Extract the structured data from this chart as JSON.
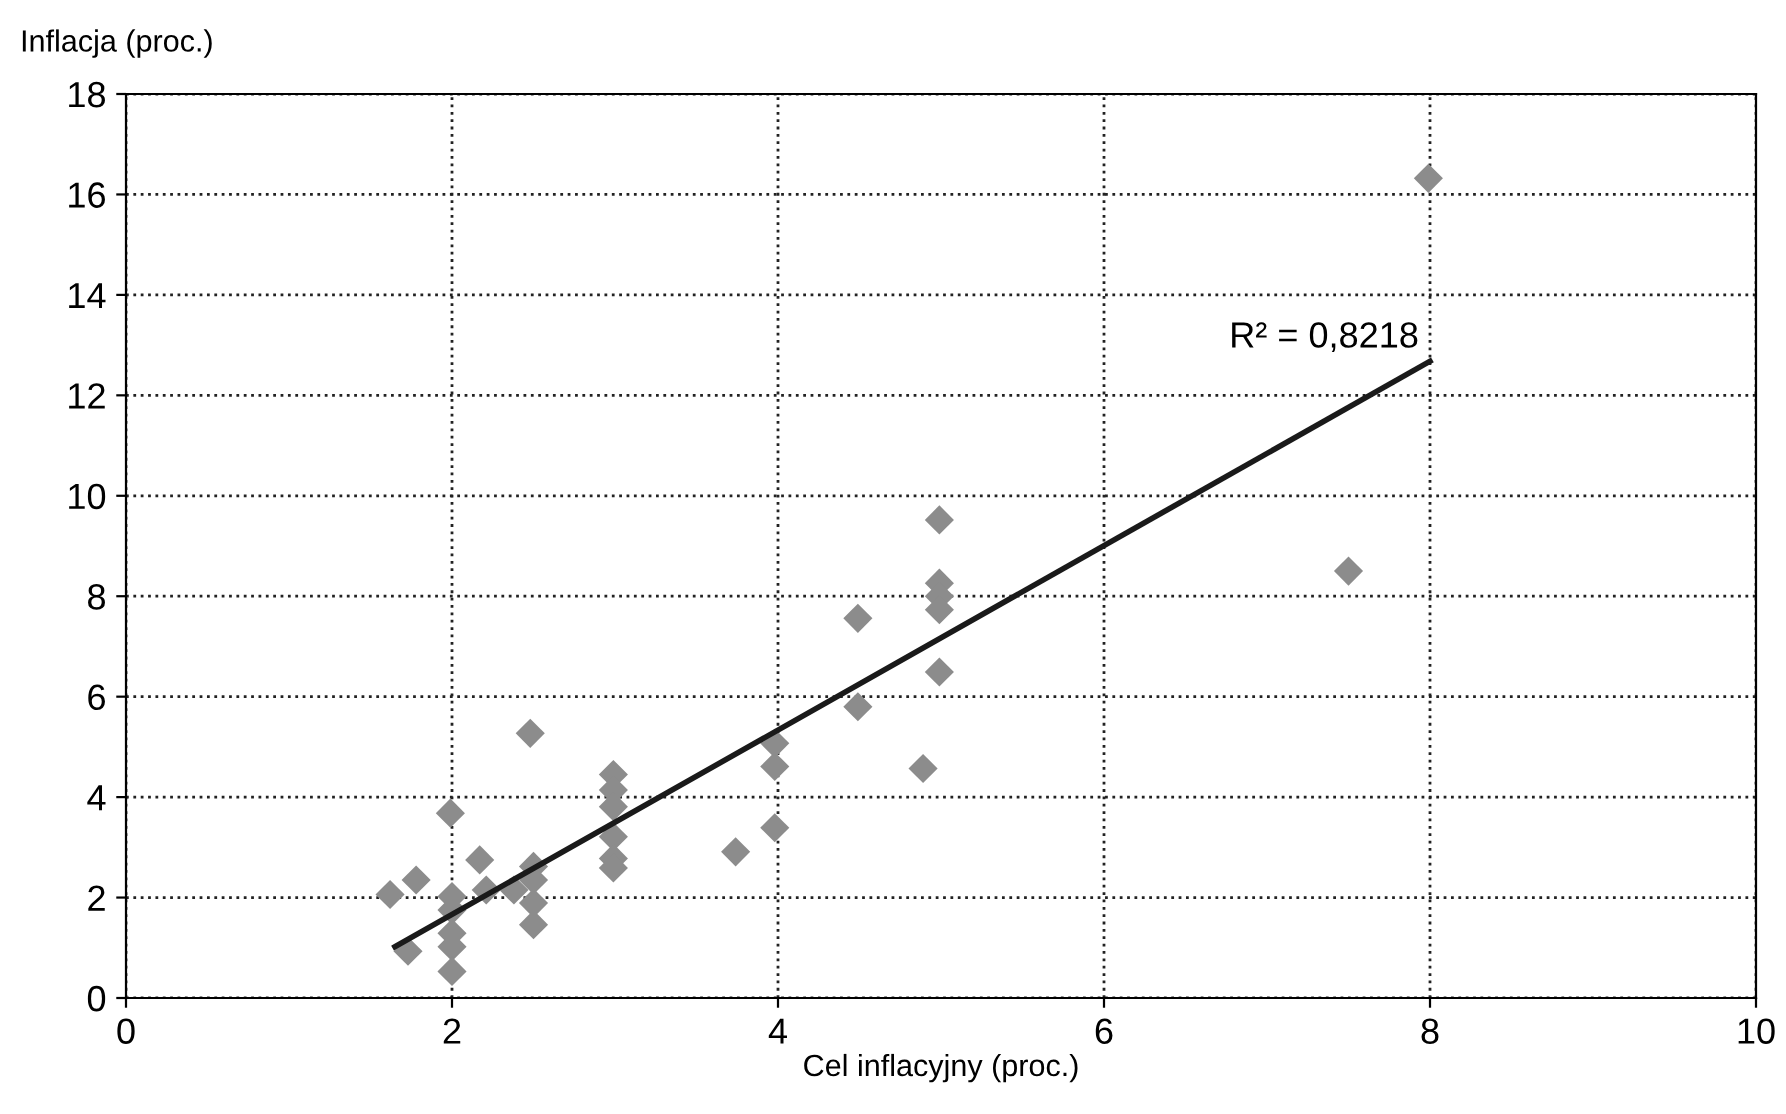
{
  "chart_data": {
    "type": "scatter",
    "xlabel": "Cel inflacyjny (proc.)",
    "ylabel": "Inflacja (proc.)",
    "xlim": [
      0,
      10
    ],
    "ylim": [
      0,
      18
    ],
    "xticks": [
      0,
      2,
      4,
      6,
      8,
      10
    ],
    "yticks": [
      0,
      2,
      4,
      6,
      8,
      10,
      12,
      14,
      16,
      18
    ],
    "grid": true,
    "legend": false,
    "marker": "diamond",
    "annotations": [
      "R² = 0,8218"
    ],
    "series": [
      {
        "color": "#8c8c8c",
        "x": [
          1.62,
          1.78,
          1.73,
          1.99,
          2.0,
          2.0,
          2.0,
          2.0,
          2.0,
          2.17,
          2.21,
          2.38,
          2.48,
          2.5,
          2.5,
          2.5,
          2.5,
          2.99,
          2.99,
          2.99,
          2.99,
          2.99,
          2.99,
          3.74,
          3.98,
          3.98,
          3.98,
          4.49,
          4.49,
          4.99,
          4.99,
          4.99,
          4.99,
          4.99,
          4.89,
          7.5,
          7.99
        ],
        "values": [
          2.06,
          2.35,
          0.93,
          3.68,
          2.02,
          1.75,
          1.29,
          1.02,
          0.53,
          2.75,
          2.15,
          2.15,
          5.27,
          2.62,
          2.35,
          1.89,
          1.46,
          4.45,
          4.14,
          3.81,
          3.21,
          2.78,
          2.59,
          2.91,
          5.07,
          4.61,
          3.39,
          5.8,
          7.56,
          9.52,
          8.26,
          8.0,
          7.73,
          6.49,
          4.57,
          8.5,
          16.32
        ]
      },
      {
        "type": "line",
        "color": "#1a1a1a",
        "marker": "none",
        "line_style": "solid",
        "x": [
          1.65,
          8.0
        ],
        "values": [
          1.02,
          12.68
        ]
      }
    ]
  }
}
